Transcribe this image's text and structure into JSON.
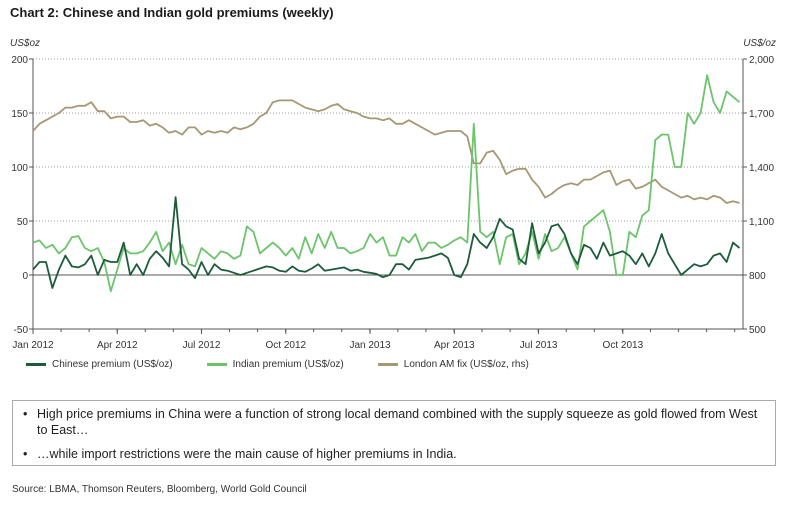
{
  "title": "Chart 2: Chinese and Indian gold premiums (weekly)",
  "left_unit": "US$oz",
  "right_unit": "US$/oz",
  "notes": [
    "High price premiums in China were a function of strong local demand combined with the supply squeeze as gold flowed from West to East…",
    "…while import restrictions were the main cause of higher premiums in India."
  ],
  "source": "Source: LBMA, Thomson Reuters, Bloomberg, World Gold Council",
  "chart_data": {
    "type": "line",
    "x_tick_labels": [
      "Jan 2012",
      "Apr 2012",
      "Jul 2012",
      "Oct 2012",
      "Jan 2013",
      "Apr 2013",
      "Jul 2013",
      "Oct 2013"
    ],
    "x_tick_weeks": [
      0,
      13,
      26,
      39,
      52,
      65,
      78,
      91
    ],
    "y_left": {
      "lim": [
        -50,
        200
      ],
      "ticks": [
        -50,
        0,
        50,
        100,
        150,
        200
      ],
      "tick_labels": [
        "-50",
        "0",
        "50",
        "100",
        "150",
        "200"
      ]
    },
    "y_right": {
      "lim": [
        500,
        2000
      ],
      "ticks": [
        500,
        800,
        1100,
        1400,
        1700,
        2000
      ],
      "tick_labels": [
        "500",
        "800",
        "1,100",
        "1,400",
        "1,700",
        "2,000"
      ]
    },
    "grid": "horizontal dotted",
    "legend_position": "bottom",
    "series": [
      {
        "name": "Chinese premium (US$/oz)",
        "axis": "left",
        "color": "#1d5c3a",
        "values": [
          5,
          12,
          12,
          -12,
          5,
          18,
          8,
          7,
          10,
          18,
          0,
          14,
          12,
          12,
          30,
          0,
          10,
          0,
          15,
          22,
          16,
          8,
          72,
          10,
          5,
          -3,
          12,
          0,
          10,
          5,
          4,
          2,
          0,
          2,
          4,
          6,
          8,
          7,
          4,
          3,
          8,
          4,
          3,
          6,
          10,
          4,
          5,
          6,
          7,
          4,
          5,
          3,
          2,
          1,
          -2,
          0,
          10,
          10,
          5,
          14,
          15,
          16,
          18,
          20,
          16,
          0,
          -2,
          10,
          38,
          30,
          25,
          35,
          52,
          45,
          42,
          15,
          10,
          48,
          20,
          30,
          45,
          47,
          38,
          20,
          10,
          28,
          25,
          15,
          30,
          18,
          20,
          22,
          18,
          10,
          20,
          8,
          20,
          38,
          20,
          10,
          0,
          5,
          10,
          8,
          10,
          18,
          20,
          12,
          30,
          25
        ],
        "x": [
          0,
          1,
          2,
          3,
          4,
          5,
          6,
          7,
          8,
          9,
          10,
          11,
          12,
          13,
          14,
          15,
          16,
          17,
          18,
          19,
          20,
          21,
          22,
          23,
          24,
          25,
          26,
          27,
          28,
          29,
          30,
          31,
          32,
          33,
          34,
          35,
          36,
          37,
          38,
          39,
          40,
          41,
          42,
          43,
          44,
          45,
          46,
          47,
          48,
          49,
          50,
          51,
          52,
          53,
          54,
          55,
          56,
          57,
          58,
          59,
          60,
          61,
          62,
          63,
          64,
          65,
          66,
          67,
          68,
          69,
          70,
          71,
          72,
          73,
          74,
          75,
          76,
          77,
          78,
          79,
          80,
          81,
          82,
          83,
          84,
          85,
          86,
          87,
          88,
          89,
          90,
          91,
          92,
          93,
          94,
          95,
          96,
          97,
          98,
          99,
          100,
          101,
          102,
          103,
          104,
          105,
          106,
          107,
          108,
          109
        ]
      },
      {
        "name": "Indian premium (US$/oz)",
        "axis": "left",
        "color": "#6cc46b",
        "values": [
          30,
          32,
          25,
          28,
          20,
          25,
          35,
          36,
          25,
          22,
          25,
          12,
          -15,
          5,
          25,
          20,
          20,
          22,
          30,
          40,
          22,
          30,
          10,
          28,
          10,
          8,
          25,
          20,
          15,
          22,
          20,
          15,
          18,
          45,
          40,
          20,
          25,
          30,
          25,
          18,
          25,
          15,
          35,
          20,
          38,
          25,
          40,
          25,
          25,
          20,
          22,
          25,
          38,
          30,
          35,
          18,
          18,
          35,
          30,
          38,
          22,
          30,
          30,
          25,
          28,
          32,
          35,
          30,
          140,
          40,
          35,
          40,
          10,
          35,
          38,
          10,
          20,
          40,
          15,
          38,
          22,
          25,
          35,
          20,
          5,
          45,
          50,
          55,
          60,
          40,
          0,
          0,
          40,
          35,
          55,
          60,
          125,
          130,
          130,
          100,
          100,
          150,
          140,
          150,
          185,
          160,
          150,
          170,
          165,
          160
        ],
        "x": [
          0,
          1,
          2,
          3,
          4,
          5,
          6,
          7,
          8,
          9,
          10,
          11,
          12,
          13,
          14,
          15,
          16,
          17,
          18,
          19,
          20,
          21,
          22,
          23,
          24,
          25,
          26,
          27,
          28,
          29,
          30,
          31,
          32,
          33,
          34,
          35,
          36,
          37,
          38,
          39,
          40,
          41,
          42,
          43,
          44,
          45,
          46,
          47,
          48,
          49,
          50,
          51,
          52,
          53,
          54,
          55,
          56,
          57,
          58,
          59,
          60,
          61,
          62,
          63,
          64,
          65,
          66,
          67,
          68,
          69,
          70,
          71,
          72,
          73,
          74,
          75,
          76,
          77,
          78,
          79,
          80,
          81,
          82,
          83,
          84,
          85,
          86,
          87,
          88,
          89,
          90,
          91,
          92,
          93,
          94,
          95,
          96,
          97,
          98,
          99,
          100,
          101,
          102,
          103,
          104,
          105,
          106,
          107,
          108,
          109
        ]
      },
      {
        "name": "London AM fix (US$/oz, rhs)",
        "axis": "right",
        "color": "#a89773",
        "values": [
          1600,
          1640,
          1660,
          1680,
          1700,
          1730,
          1730,
          1740,
          1740,
          1760,
          1710,
          1710,
          1670,
          1680,
          1680,
          1650,
          1650,
          1660,
          1630,
          1640,
          1620,
          1590,
          1600,
          1580,
          1620,
          1620,
          1580,
          1600,
          1590,
          1600,
          1590,
          1620,
          1610,
          1620,
          1640,
          1680,
          1700,
          1760,
          1770,
          1770,
          1770,
          1750,
          1730,
          1720,
          1710,
          1720,
          1740,
          1750,
          1720,
          1710,
          1700,
          1680,
          1670,
          1670,
          1660,
          1670,
          1640,
          1640,
          1660,
          1640,
          1620,
          1600,
          1580,
          1590,
          1600,
          1600,
          1600,
          1570,
          1420,
          1420,
          1480,
          1490,
          1440,
          1360,
          1380,
          1390,
          1390,
          1330,
          1290,
          1230,
          1250,
          1280,
          1300,
          1310,
          1300,
          1330,
          1330,
          1350,
          1370,
          1380,
          1300,
          1320,
          1330,
          1280,
          1290,
          1310,
          1330,
          1290,
          1270,
          1250,
          1230,
          1240,
          1220,
          1230,
          1220,
          1240,
          1230,
          1200,
          1210,
          1200
        ],
        "x": [
          0,
          1,
          2,
          3,
          4,
          5,
          6,
          7,
          8,
          9,
          10,
          11,
          12,
          13,
          14,
          15,
          16,
          17,
          18,
          19,
          20,
          21,
          22,
          23,
          24,
          25,
          26,
          27,
          28,
          29,
          30,
          31,
          32,
          33,
          34,
          35,
          36,
          37,
          38,
          39,
          40,
          41,
          42,
          43,
          44,
          45,
          46,
          47,
          48,
          49,
          50,
          51,
          52,
          53,
          54,
          55,
          56,
          57,
          58,
          59,
          60,
          61,
          62,
          63,
          64,
          65,
          66,
          67,
          68,
          69,
          70,
          71,
          72,
          73,
          74,
          75,
          76,
          77,
          78,
          79,
          80,
          81,
          82,
          83,
          84,
          85,
          86,
          87,
          88,
          89,
          90,
          91,
          92,
          93,
          94,
          95,
          96,
          97,
          98,
          99,
          100,
          101,
          102,
          103,
          104,
          105,
          106,
          107,
          108,
          109
        ]
      }
    ]
  }
}
